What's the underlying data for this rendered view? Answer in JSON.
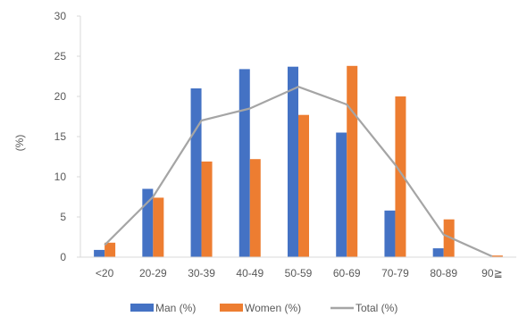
{
  "chart_data": {
    "type": "bar",
    "title": "",
    "xlabel": "",
    "ylabel": "(%)",
    "ylim": [
      0,
      30
    ],
    "yticks": [
      0,
      5,
      10,
      15,
      20,
      25,
      30
    ],
    "grid": false,
    "legend_position": "bottom",
    "categories": [
      "<20",
      "20-29",
      "30-39",
      "40-49",
      "50-59",
      "60-69",
      "70-79",
      "80-89",
      "90≧"
    ],
    "series": [
      {
        "name": "Man (%)",
        "type": "bar",
        "color": "#4472C4",
        "values": [
          0.9,
          8.5,
          21.0,
          23.4,
          23.7,
          15.5,
          5.8,
          1.1,
          0.0
        ]
      },
      {
        "name": "Women (%)",
        "type": "bar",
        "color": "#ED7D31",
        "values": [
          1.8,
          7.4,
          11.9,
          12.2,
          17.7,
          23.8,
          20.0,
          4.7,
          0.2
        ]
      },
      {
        "name": "Total (%)",
        "type": "line",
        "color": "#A5A5A5",
        "values": [
          1.5,
          7.5,
          17.0,
          18.5,
          21.2,
          19.0,
          11.5,
          2.8,
          0.1
        ]
      }
    ]
  }
}
